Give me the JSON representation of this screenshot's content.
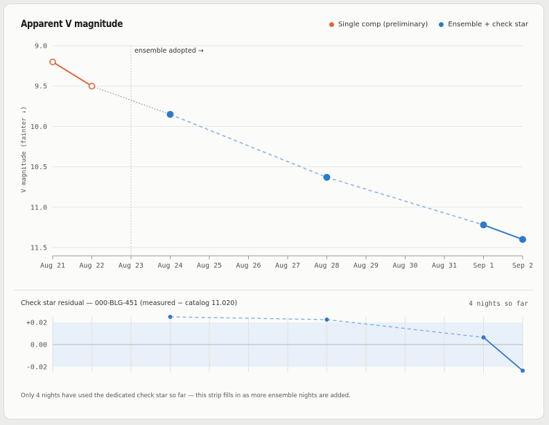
{
  "main_chart": {
    "title": "Apparent V magnitude",
    "legend": [
      {
        "label": "Single comp (preliminary)",
        "color": "#e0673a"
      },
      {
        "label": "Ensemble + check star",
        "color": "#2f78cf"
      }
    ],
    "ylabel": "V magnitude (fainter ↓)",
    "annotation": "ensemble adopted →"
  },
  "residual_chart": {
    "title": "Check star residual — 000-BLG-451 (measured − catalog 11.020)",
    "nights_label": "4 nights so far",
    "footnote": "Only 4 nights have used the dedicated check star so far — this strip fills in as more ensemble nights are added."
  },
  "chart_data": [
    {
      "type": "line",
      "title": "Apparent V magnitude",
      "xlabel": "",
      "ylabel": "V magnitude (fainter ↓)",
      "x_ticks": [
        "Aug 21",
        "Aug 22",
        "Aug 23",
        "Aug 24",
        "Aug 25",
        "Aug 26",
        "Aug 27",
        "Aug 28",
        "Aug 29",
        "Aug 30",
        "Aug 31",
        "Sep 1",
        "Sep 2"
      ],
      "y_ticks": [
        "9.0",
        "9.5",
        "10.0",
        "10.5",
        "11.0",
        "11.5"
      ],
      "ylim": [
        9.0,
        11.5
      ],
      "y_inverted": true,
      "grid": "horizontal",
      "legend_position": "top-right",
      "series": [
        {
          "name": "Single comp (preliminary)",
          "color": "#e0673a",
          "points": [
            {
              "x": "Aug 21",
              "y": 9.2
            },
            {
              "x": "Aug 22",
              "y": 9.5
            }
          ]
        },
        {
          "name": "Ensemble + check star",
          "color": "#2f78cf",
          "points": [
            {
              "x": "Aug 24",
              "y": 9.85
            },
            {
              "x": "Aug 28",
              "y": 10.63
            },
            {
              "x": "Sep 1",
              "y": 11.22
            },
            {
              "x": "Sep 2",
              "y": 11.4
            }
          ]
        }
      ],
      "annotations": [
        {
          "x": "Aug 23",
          "text": "ensemble adopted →"
        }
      ]
    },
    {
      "type": "line",
      "title": "Check star residual — 000-BLG-451 (measured − catalog 11.020)",
      "y_ticks": [
        "+0.02",
        "0.00",
        "-0.02"
      ],
      "ylim": [
        -0.025,
        0.025
      ],
      "band": [
        -0.02,
        0.02
      ],
      "series": [
        {
          "name": "",
          "color": "#2f78cf",
          "points": [
            {
              "x": "Aug 24",
              "y": 0.025
            },
            {
              "x": "Aug 28",
              "y": 0.0225
            },
            {
              "x": "Sep 1",
              "y": 0.0065
            },
            {
              "x": "Sep 2",
              "y": -0.0235
            }
          ]
        }
      ]
    }
  ]
}
